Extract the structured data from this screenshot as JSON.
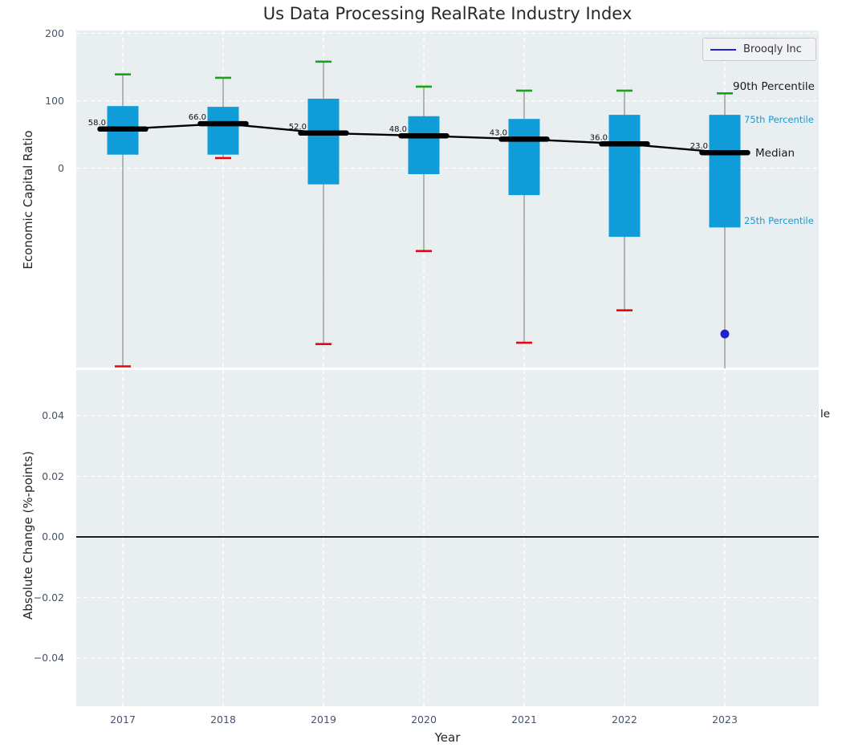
{
  "title": "Us Data Processing RealRate Industry Index",
  "colors": {
    "plot_bg": "#e9eef0",
    "grid": "#ffffff",
    "box_fill": "#0f9cd8",
    "p90_cap": "#1aa11a",
    "p10_cap": "#e9040e",
    "whisker": "#8a8a8a",
    "median_line": "#000000",
    "company_blue": "#2121cc",
    "percentile_label": "#149bd8",
    "tick_label": "#46536a"
  },
  "chart_data": [
    {
      "type": "boxplot",
      "title": "Us Data Processing RealRate Industry Index",
      "ylabel": "Economic Capital Ratio",
      "ylim": [
        -296,
        204
      ],
      "grid": true,
      "yticks": {
        "labels": [
          "200",
          "100",
          "0"
        ],
        "values": [
          200,
          100,
          0
        ]
      },
      "categories": [
        "2017",
        "2018",
        "2019",
        "2020",
        "2021",
        "2022",
        "2023"
      ],
      "series": [
        {
          "year": "2017",
          "p90": 139,
          "p75": 92,
          "median": 58.0,
          "p25": 20,
          "p10": -294,
          "p10_clipped": false
        },
        {
          "year": "2018",
          "p90": 134,
          "p75": 91,
          "median": 66.0,
          "p25": 20,
          "p10": 15,
          "p10_clipped": false
        },
        {
          "year": "2019",
          "p90": 158,
          "p75": 103,
          "median": 52.0,
          "p25": -24,
          "p10": -261,
          "p10_clipped": false
        },
        {
          "year": "2020",
          "p90": 121,
          "p75": 77,
          "median": 48.0,
          "p25": -9,
          "p10": -123,
          "p10_clipped": false
        },
        {
          "year": "2021",
          "p90": 115,
          "p75": 73,
          "median": 43.0,
          "p25": -40,
          "p10": -259,
          "p10_clipped": false
        },
        {
          "year": "2022",
          "p90": 115,
          "p75": 79,
          "median": 36.0,
          "p25": -102,
          "p10": -211,
          "p10_clipped": false
        },
        {
          "year": "2023",
          "p90": 111,
          "p75": 79,
          "median": 23.0,
          "p25": -88,
          "p10": -310,
          "p10_clipped": true
        }
      ],
      "median_labels": [
        "58.0",
        "66.0",
        "52.0",
        "48.0",
        "43.0",
        "36.0",
        "23.0"
      ],
      "overlay_line": {
        "name": "Brooqly Inc",
        "points": [
          {
            "x": "2023",
            "y": -246
          }
        ]
      },
      "legend_position": "upper right",
      "percentile_annotations": [
        "90th Percentile",
        "75th Percentile",
        "Median",
        "25th Percentile"
      ]
    },
    {
      "type": "line",
      "ylabel": "Absolute Change (%-points)",
      "xlabel": "Year",
      "ylim": [
        -0.0556,
        0.0551
      ],
      "grid": true,
      "zero_line": true,
      "yticks": {
        "labels": [
          "0.04",
          "0.02",
          "0.00",
          "−0.02",
          "−0.04"
        ],
        "values": [
          0.04,
          0.02,
          0.0,
          -0.02,
          -0.04
        ]
      },
      "xticks": [
        "2017",
        "2018",
        "2019",
        "2020",
        "2021",
        "2022",
        "2023"
      ],
      "series": [],
      "partial_text_right": "le"
    }
  ]
}
